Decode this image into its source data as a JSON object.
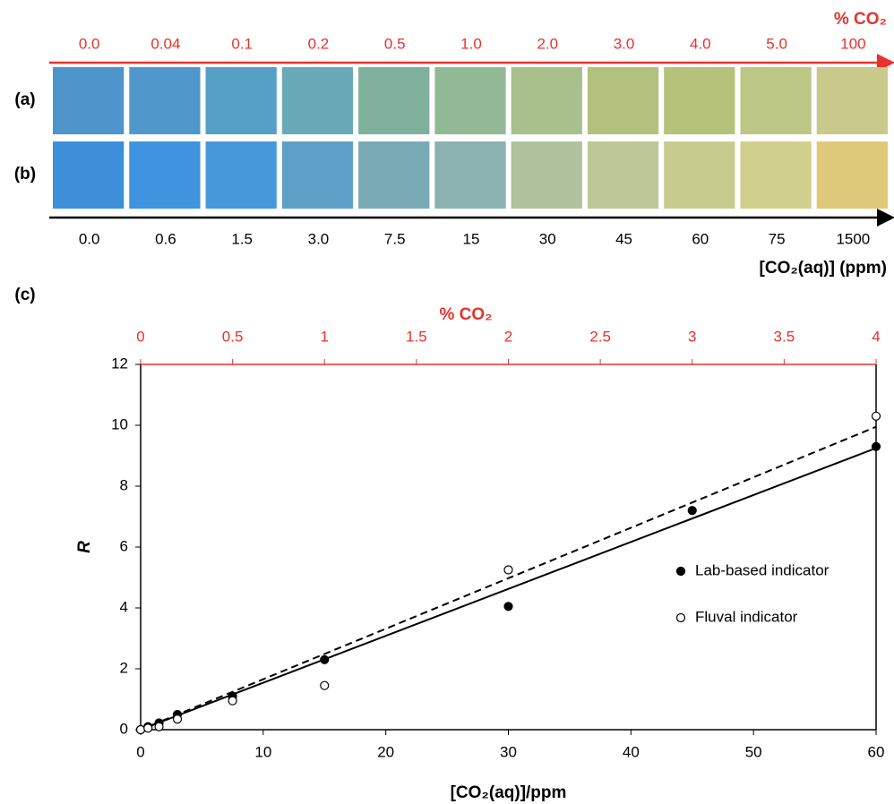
{
  "swatches": {
    "top_axis_label": "% CO₂",
    "percent_labels": [
      "0.0",
      "0.04",
      "0.1",
      "0.2",
      "0.5",
      "1.0",
      "2.0",
      "3.0",
      "4.0",
      "5.0",
      "100"
    ],
    "rows": [
      {
        "label": "(a)",
        "colors": [
          "#4f94cb",
          "#5098cc",
          "#56a0c6",
          "#6aa9b8",
          "#7eb09c",
          "#92b996",
          "#a7c08c",
          "#b3c17e",
          "#b6c27a",
          "#bdc785",
          "#c8c98a"
        ]
      },
      {
        "label": "(b)",
        "colors": [
          "#3d8fd9",
          "#3f93df",
          "#4798db",
          "#5fa0c8",
          "#7aabb5",
          "#8bb2b0",
          "#b0c29e",
          "#bec896",
          "#c7cc8e",
          "#d1cf8d",
          "#dec97a"
        ]
      }
    ],
    "ppm_labels": [
      "0.0",
      "0.6",
      "1.5",
      "3.0",
      "7.5",
      "15",
      "30",
      "45",
      "60",
      "75",
      "1500"
    ],
    "bottom_axis_label": "[CO₂(aq)] (ppm)"
  },
  "chart_data": {
    "type": "scatter",
    "panel_label": "(c)",
    "x_label": "[CO₂(aq)]/ppm",
    "y_label": "R",
    "x2_label": "% CO₂",
    "xlim": [
      0,
      60
    ],
    "xticks": [
      0,
      10,
      20,
      30,
      40,
      50,
      60
    ],
    "ylim": [
      0,
      12
    ],
    "yticks": [
      0,
      2,
      4,
      6,
      8,
      10,
      12
    ],
    "x2lim": [
      0,
      4
    ],
    "x2ticks": [
      0,
      0.5,
      1,
      1.5,
      2,
      2.5,
      3,
      3.5,
      4
    ],
    "legend": "right",
    "series": [
      {
        "name": "Lab-based indicator",
        "color": "#000000",
        "marker": "filled",
        "x": [
          0,
          0.6,
          1.5,
          3,
          7.5,
          15,
          30,
          45,
          60
        ],
        "values": [
          0,
          0.1,
          0.22,
          0.5,
          1.1,
          2.3,
          4.05,
          7.2,
          9.3
        ],
        "trendline": {
          "x": [
            0,
            60
          ],
          "values": [
            0,
            9.25
          ],
          "dash": false
        }
      },
      {
        "name": "Fluval indicator",
        "color": "#000000",
        "marker": "open",
        "x": [
          0,
          0.6,
          1.5,
          3,
          7.5,
          15,
          30,
          60
        ],
        "values": [
          0,
          0.05,
          0.1,
          0.35,
          0.95,
          1.45,
          5.25,
          10.3
        ],
        "trendline": {
          "x": [
            0,
            60
          ],
          "values": [
            0,
            9.95
          ],
          "dash": true
        }
      }
    ]
  }
}
